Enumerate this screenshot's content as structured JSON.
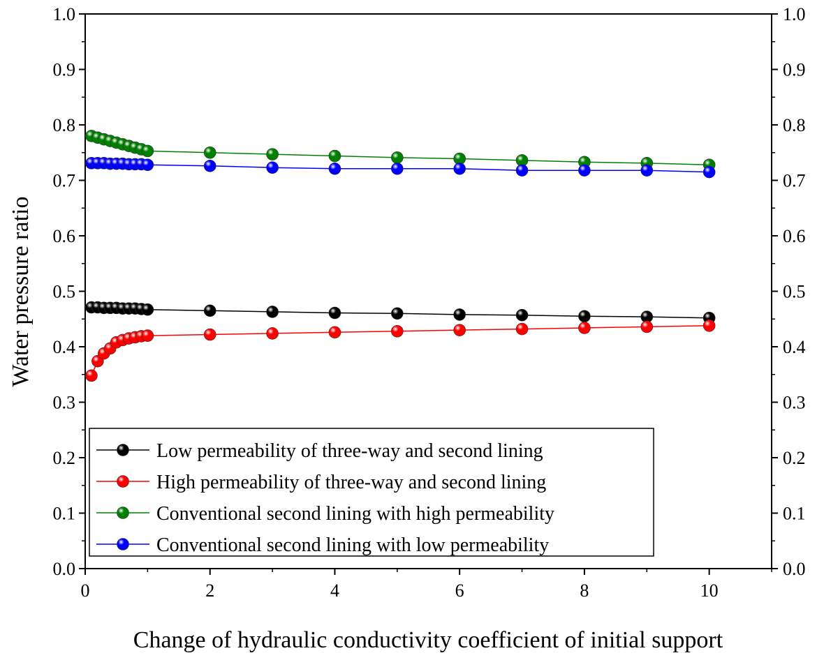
{
  "chart_data": {
    "type": "line",
    "title": "",
    "xlabel": "Change of hydraulic conductivity coefficient of initial support",
    "ylabel": "Water pressure ratio",
    "xlim": [
      0,
      11
    ],
    "ylim": [
      0,
      1
    ],
    "x_ticks": [
      0,
      2,
      4,
      6,
      8,
      10
    ],
    "x_tick_labels": [
      "0",
      "2",
      "4",
      "6",
      "8",
      "10"
    ],
    "y_ticks": [
      0,
      0.1,
      0.2,
      0.3,
      0.4,
      0.5,
      0.6,
      0.7,
      0.8,
      0.9,
      1.0
    ],
    "y_tick_labels": [
      "0.0",
      "0.1",
      "0.2",
      "0.3",
      "0.4",
      "0.5",
      "0.6",
      "0.7",
      "0.8",
      "0.9",
      "1.0"
    ],
    "right_axis_mirrored": true,
    "grid": false,
    "legend_position": "bottom-left",
    "x": [
      0.1,
      0.2,
      0.3,
      0.4,
      0.5,
      0.6,
      0.7,
      0.8,
      0.9,
      1,
      2,
      3,
      4,
      5,
      6,
      7,
      8,
      9,
      10
    ],
    "series": [
      {
        "name": "Low permeability of three-way and second lining",
        "color": "#000000",
        "values": [
          0.471,
          0.471,
          0.47,
          0.47,
          0.47,
          0.469,
          0.469,
          0.469,
          0.468,
          0.467,
          0.465,
          0.463,
          0.461,
          0.46,
          0.458,
          0.457,
          0.455,
          0.454,
          0.452
        ]
      },
      {
        "name": "High permeability of three-way and second lining",
        "color": "#ff0000",
        "values": [
          0.348,
          0.374,
          0.388,
          0.397,
          0.408,
          0.412,
          0.415,
          0.417,
          0.419,
          0.42,
          0.422,
          0.424,
          0.426,
          0.428,
          0.43,
          0.432,
          0.434,
          0.436,
          0.438
        ]
      },
      {
        "name": "Conventional second lining with high permeability",
        "color": "#008000",
        "values": [
          0.78,
          0.777,
          0.774,
          0.771,
          0.768,
          0.765,
          0.762,
          0.759,
          0.756,
          0.753,
          0.75,
          0.747,
          0.744,
          0.741,
          0.739,
          0.736,
          0.733,
          0.731,
          0.728
        ]
      },
      {
        "name": "Conventional second lining with low permeability",
        "color": "#0000ff",
        "values": [
          0.731,
          0.731,
          0.731,
          0.73,
          0.73,
          0.73,
          0.729,
          0.729,
          0.729,
          0.728,
          0.726,
          0.723,
          0.721,
          0.721,
          0.721,
          0.718,
          0.718,
          0.718,
          0.715
        ]
      }
    ]
  }
}
